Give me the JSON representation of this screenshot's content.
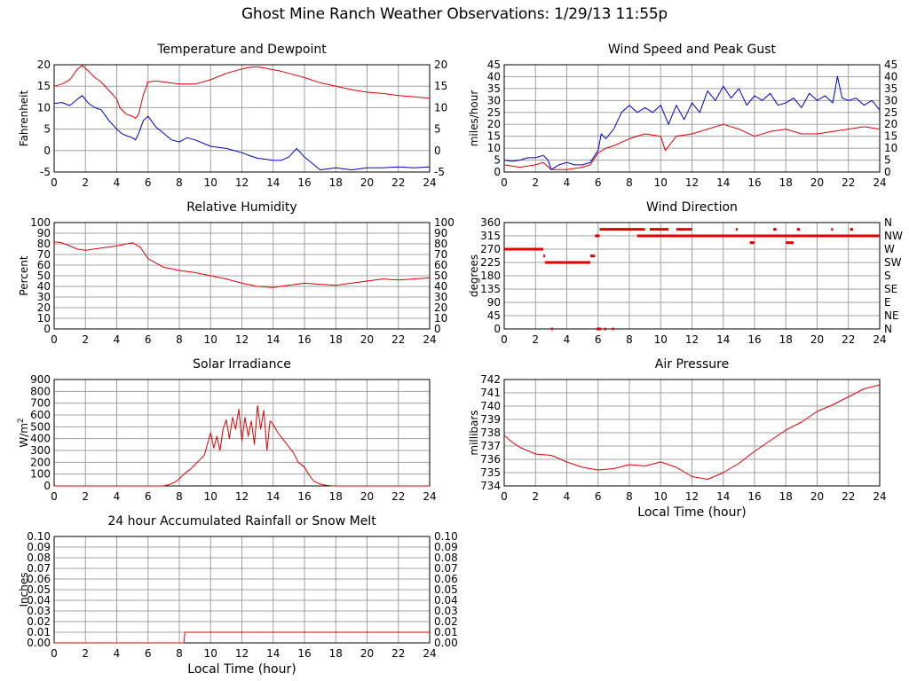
{
  "page": {
    "title": "Ghost Mine Ranch Weather Observations: 1/29/13 11:55p"
  },
  "colors": {
    "grid": "#a0a0a0",
    "red": "#e00000",
    "blue": "#0000c8",
    "axis": "#000000"
  },
  "chart_data": [
    {
      "id": "temp",
      "type": "line",
      "title": "Temperature and Dewpoint",
      "xlabel": "",
      "ylabel": "Fahrenheit",
      "right_axis": true,
      "xlim": [
        0,
        24
      ],
      "ylim": [
        -5,
        20
      ],
      "x_ticks": [
        "0",
        "2",
        "4",
        "6",
        "8",
        "10",
        "12",
        "14",
        "16",
        "18",
        "20",
        "22",
        "24"
      ],
      "y_ticks": [
        "-5",
        "0",
        "5",
        "10",
        "15",
        "20"
      ],
      "y_right_ticks": [
        "-5",
        "0",
        "5",
        "10",
        "15",
        "20"
      ],
      "series": [
        {
          "color": "red",
          "x": [
            0,
            0.5,
            1,
            1.5,
            1.8,
            2.2,
            2.6,
            3,
            3.5,
            4,
            4.2,
            4.6,
            5,
            5.2,
            5.4,
            5.7,
            6,
            6.5,
            7,
            8,
            9,
            10,
            11,
            12,
            12.5,
            13,
            13.5,
            14,
            14.5,
            15,
            16,
            17,
            18,
            19,
            20,
            21,
            22,
            23,
            24
          ],
          "y": [
            15,
            15.5,
            16.5,
            19,
            19.8,
            18.5,
            17,
            16,
            14,
            12,
            10,
            8.5,
            8,
            7.5,
            8.5,
            13,
            16,
            16.2,
            16,
            15.5,
            15.5,
            16.5,
            18,
            19,
            19.4,
            19.5,
            19.2,
            18.8,
            18.5,
            18,
            17,
            15.8,
            15,
            14.2,
            13.6,
            13.3,
            12.8,
            12.5,
            12.2
          ]
        },
        {
          "color": "blue",
          "x": [
            0,
            0.5,
            1,
            1.5,
            1.8,
            2.2,
            2.6,
            3,
            3.5,
            4,
            4.3,
            4.6,
            5,
            5.2,
            5.4,
            5.7,
            6,
            6.5,
            7,
            7.5,
            8,
            8.5,
            9,
            10,
            11,
            12,
            12.5,
            13,
            13.5,
            14,
            14.5,
            15,
            15.5,
            16,
            16.5,
            17,
            18,
            19,
            20,
            21,
            22,
            23,
            24
          ],
          "y": [
            11,
            11.2,
            10.5,
            12,
            12.8,
            11,
            10,
            9.5,
            7,
            5,
            4,
            3.5,
            3,
            2.5,
            4,
            7,
            8,
            5.5,
            4,
            2.5,
            2,
            3,
            2.5,
            1,
            0.5,
            -0.5,
            -1.2,
            -1.8,
            -2,
            -2.3,
            -2.3,
            -1.5,
            0.5,
            -1.5,
            -3,
            -4.5,
            -4,
            -4.5,
            -4,
            -4,
            -3.8,
            -4,
            -3.8
          ]
        }
      ]
    },
    {
      "id": "wind",
      "type": "line",
      "title": "Wind Speed and Peak Gust",
      "xlabel": "",
      "ylabel": "miles/hour",
      "right_axis": true,
      "xlim": [
        0,
        24
      ],
      "ylim": [
        0,
        45
      ],
      "x_ticks": [
        "0",
        "2",
        "4",
        "6",
        "8",
        "10",
        "12",
        "14",
        "16",
        "18",
        "20",
        "22",
        "24"
      ],
      "y_ticks": [
        "0",
        "5",
        "10",
        "15",
        "20",
        "25",
        "30",
        "35",
        "40",
        "45"
      ],
      "y_right_ticks": [
        "0",
        "5",
        "10",
        "15",
        "20",
        "25",
        "30",
        "35",
        "40",
        "45"
      ],
      "series": [
        {
          "color": "red",
          "x": [
            0,
            1,
            2,
            2.5,
            3,
            3.5,
            4,
            5,
            5.5,
            6,
            6.5,
            7,
            8,
            9,
            10,
            10.3,
            11,
            12,
            13,
            14,
            15,
            16,
            17,
            18,
            19,
            20,
            21,
            22,
            23,
            24
          ],
          "y": [
            3,
            2,
            3,
            4,
            1,
            1,
            1,
            2,
            3,
            8,
            10,
            11,
            14,
            16,
            15,
            9,
            15,
            16,
            18,
            20,
            18,
            15,
            17,
            18,
            16,
            16,
            17,
            18,
            19,
            18
          ]
        },
        {
          "color": "blue",
          "x": [
            0,
            0.5,
            1,
            1.5,
            2,
            2.5,
            2.8,
            3,
            3.5,
            4,
            4.5,
            5,
            5.5,
            6,
            6.2,
            6.5,
            7,
            7.5,
            8,
            8.5,
            9,
            9.5,
            10,
            10.5,
            11,
            11.5,
            12,
            12.5,
            13,
            13.5,
            14,
            14.5,
            15,
            15.5,
            16,
            16.5,
            17,
            17.5,
            18,
            18.5,
            19,
            19.5,
            20,
            20.5,
            21,
            21.3,
            21.6,
            22,
            22.5,
            23,
            23.5,
            24
          ],
          "y": [
            5,
            4.5,
            5,
            6,
            6,
            7,
            5,
            1,
            3,
            4,
            3,
            3,
            4,
            9,
            16,
            14,
            18,
            25,
            28,
            25,
            27,
            25,
            28,
            20,
            28,
            22,
            29,
            25,
            34,
            30,
            36,
            31,
            35,
            28,
            32,
            30,
            33,
            28,
            29,
            31,
            27,
            33,
            30,
            32,
            29,
            40,
            31,
            30,
            31,
            28,
            30,
            26
          ]
        }
      ]
    },
    {
      "id": "rh",
      "type": "line",
      "title": "Relative Humidity",
      "xlabel": "",
      "ylabel": "Percent",
      "right_axis": true,
      "xlim": [
        0,
        24
      ],
      "ylim": [
        0,
        100
      ],
      "x_ticks": [
        "0",
        "2",
        "4",
        "6",
        "8",
        "10",
        "12",
        "14",
        "16",
        "18",
        "20",
        "22",
        "24"
      ],
      "y_ticks": [
        "0",
        "10",
        "20",
        "30",
        "40",
        "50",
        "60",
        "70",
        "80",
        "90",
        "100"
      ],
      "y_right_ticks": [
        "0",
        "10",
        "20",
        "30",
        "40",
        "50",
        "60",
        "70",
        "80",
        "90",
        "100"
      ],
      "series": [
        {
          "color": "red",
          "x": [
            0,
            0.5,
            1,
            1.5,
            2,
            2.5,
            3,
            4,
            5,
            5.5,
            6,
            6.5,
            7,
            8,
            9,
            10,
            11,
            12,
            13,
            14,
            15,
            16,
            17,
            18,
            19,
            20,
            21,
            22,
            23,
            24
          ],
          "y": [
            82,
            81,
            78,
            75,
            74,
            75,
            76,
            78,
            81,
            77,
            66,
            62,
            58,
            55,
            53,
            50,
            47,
            43,
            40,
            39,
            41,
            43,
            42,
            41,
            43,
            45,
            47,
            46,
            47,
            48
          ]
        }
      ]
    },
    {
      "id": "wdir",
      "type": "scatter",
      "title": "Wind Direction",
      "xlabel": "",
      "ylabel": "degrees",
      "right_axis": true,
      "xlim": [
        0,
        24
      ],
      "ylim": [
        0,
        360
      ],
      "x_ticks": [
        "0",
        "2",
        "4",
        "6",
        "8",
        "10",
        "12",
        "14",
        "16",
        "18",
        "20",
        "22",
        "24"
      ],
      "y_ticks": [
        "0",
        "45",
        "90",
        "135",
        "180",
        "225",
        "270",
        "315",
        "360"
      ],
      "y_right_ticks": [
        "N",
        "NE",
        "E",
        "SE",
        "S",
        "SW",
        "W",
        "NW",
        "N"
      ],
      "series": [
        {
          "color": "red",
          "segments": [
            {
              "x0": 0,
              "x1": 2.5,
              "y": 270
            },
            {
              "x0": 2.5,
              "x1": 2.6,
              "y": 247
            },
            {
              "x0": 2.6,
              "x1": 5.5,
              "y": 225
            },
            {
              "x0": 5.5,
              "x1": 5.8,
              "y": 247
            },
            {
              "x0": 5.8,
              "x1": 6.1,
              "y": 315
            },
            {
              "x0": 6.1,
              "x1": 9,
              "y": 337
            },
            {
              "x0": 8.5,
              "x1": 12,
              "y": 315
            },
            {
              "x0": 9.3,
              "x1": 10.5,
              "y": 337
            },
            {
              "x0": 11,
              "x1": 12,
              "y": 337
            },
            {
              "x0": 12,
              "x1": 24,
              "y": 315
            },
            {
              "x0": 15.7,
              "x1": 16,
              "y": 292
            },
            {
              "x0": 18,
              "x1": 18.5,
              "y": 292
            },
            {
              "x0": 14.8,
              "x1": 14.9,
              "y": 337
            },
            {
              "x0": 17.2,
              "x1": 17.4,
              "y": 337
            },
            {
              "x0": 18.7,
              "x1": 18.9,
              "y": 337
            },
            {
              "x0": 20.9,
              "x1": 21.0,
              "y": 337
            },
            {
              "x0": 22.1,
              "x1": 22.3,
              "y": 337
            },
            {
              "x0": 3.0,
              "x1": 3.1,
              "y": 0
            },
            {
              "x0": 5.9,
              "x1": 6.2,
              "y": 0
            },
            {
              "x0": 6.4,
              "x1": 6.5,
              "y": 0
            },
            {
              "x0": 6.9,
              "x1": 7.0,
              "y": 0
            }
          ]
        }
      ]
    },
    {
      "id": "solar",
      "type": "line",
      "title": "Solar Irradiance",
      "xlabel": "",
      "ylabel": "W/m",
      "ylabel_sup": "2",
      "right_axis": false,
      "xlim": [
        0,
        24
      ],
      "ylim": [
        0,
        900
      ],
      "x_ticks": [
        "0",
        "2",
        "4",
        "6",
        "8",
        "10",
        "12",
        "14",
        "16",
        "18",
        "20",
        "22",
        "24"
      ],
      "y_ticks": [
        "0",
        "100",
        "200",
        "300",
        "400",
        "500",
        "600",
        "700",
        "800",
        "900"
      ],
      "series": [
        {
          "color": "red",
          "x": [
            0,
            7,
            7.3,
            7.7,
            8,
            8.3,
            8.7,
            9,
            9.3,
            9.6,
            10,
            10.2,
            10.4,
            10.6,
            10.8,
            11,
            11.2,
            11.4,
            11.6,
            11.8,
            12,
            12.2,
            12.4,
            12.6,
            12.8,
            13,
            13.2,
            13.4,
            13.6,
            13.8,
            14,
            14.3,
            14.6,
            15,
            15.3,
            15.6,
            16,
            16.3,
            16.6,
            17,
            17.4,
            17.8,
            24
          ],
          "y": [
            0,
            0,
            10,
            30,
            60,
            100,
            140,
            180,
            220,
            260,
            450,
            320,
            420,
            300,
            480,
            560,
            400,
            580,
            480,
            650,
            380,
            580,
            420,
            550,
            350,
            680,
            480,
            640,
            300,
            550,
            520,
            450,
            400,
            330,
            280,
            200,
            160,
            90,
            40,
            15,
            5,
            0,
            0
          ]
        }
      ]
    },
    {
      "id": "pressure",
      "type": "line",
      "title": "Air Pressure",
      "xlabel": "Local Time (hour)",
      "ylabel": "millibars",
      "right_axis": false,
      "xlim": [
        0,
        24
      ],
      "ylim": [
        734,
        742
      ],
      "x_ticks": [
        "0",
        "2",
        "4",
        "6",
        "8",
        "10",
        "12",
        "14",
        "16",
        "18",
        "20",
        "22",
        "24"
      ],
      "y_ticks": [
        "734",
        "735",
        "736",
        "737",
        "738",
        "739",
        "740",
        "741",
        "742"
      ],
      "series": [
        {
          "color": "red",
          "x": [
            0,
            0.5,
            1,
            2,
            3,
            4,
            5,
            6,
            7,
            8,
            9,
            10,
            11,
            12,
            13,
            14,
            15,
            16,
            17,
            18,
            19,
            20,
            21,
            22,
            23,
            24
          ],
          "y": [
            737.8,
            737.3,
            736.9,
            736.4,
            736.3,
            735.8,
            735.4,
            735.2,
            735.3,
            735.6,
            735.5,
            735.8,
            735.4,
            734.7,
            734.5,
            735.0,
            735.7,
            736.6,
            737.4,
            738.2,
            738.8,
            739.6,
            740.1,
            740.7,
            741.3,
            741.6
          ]
        }
      ]
    },
    {
      "id": "rain",
      "type": "line",
      "title": "24 hour Accumulated Rainfall or Snow Melt",
      "xlabel": "Local Time (hour)",
      "ylabel": "Inches",
      "right_axis": true,
      "xlim": [
        0,
        24
      ],
      "ylim": [
        0,
        0.1
      ],
      "x_ticks": [
        "0",
        "2",
        "4",
        "6",
        "8",
        "10",
        "12",
        "14",
        "16",
        "18",
        "20",
        "22",
        "24"
      ],
      "y_ticks": [
        "0.00",
        "0.01",
        "0.02",
        "0.03",
        "0.04",
        "0.05",
        "0.06",
        "0.07",
        "0.08",
        "0.09",
        "0.10"
      ],
      "y_right_ticks": [
        "0.00",
        "0.01",
        "0.02",
        "0.03",
        "0.04",
        "0.05",
        "0.06",
        "0.07",
        "0.08",
        "0.09",
        "0.10"
      ],
      "series": [
        {
          "color": "red",
          "x": [
            0,
            8.3,
            8.35,
            24
          ],
          "y": [
            0,
            0,
            0.01,
            0.01
          ]
        }
      ]
    }
  ]
}
